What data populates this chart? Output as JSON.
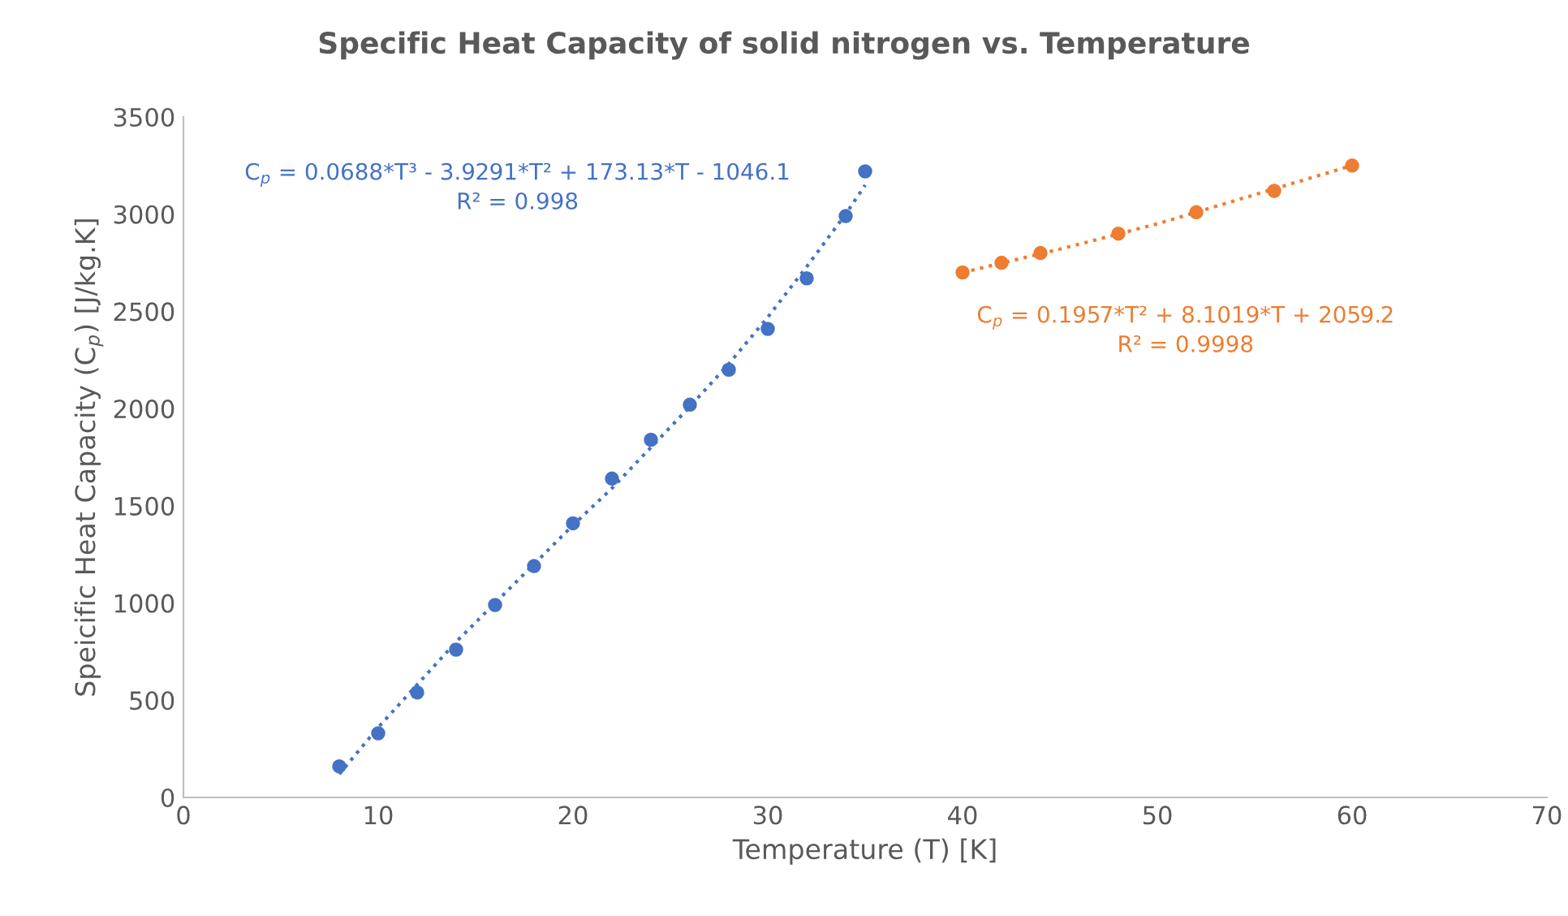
{
  "chart_data": {
    "type": "scatter",
    "title": "Specific Heat Capacity of solid nitrogen vs. Temperature",
    "xlabel": "Temperature (T) [K]",
    "ylabel": "Speicific Heat Capacity (C$_{p}$) [J/kg.K]",
    "xlim": [
      0,
      70
    ],
    "xticks": [
      0,
      10,
      20,
      30,
      40,
      50,
      60,
      70
    ],
    "ylim": [
      0,
      3500
    ],
    "yticks": [
      0,
      500,
      1000,
      1500,
      2000,
      2500,
      3000,
      3500
    ],
    "marker": "circle",
    "series": [
      {
        "color": "#4472c4",
        "x": [
          8,
          10,
          12,
          14,
          16,
          18,
          20,
          22,
          24,
          26,
          28,
          30,
          32,
          34,
          35
        ],
        "values": [
          160,
          330,
          540,
          760,
          990,
          1190,
          1410,
          1640,
          1840,
          2020,
          2200,
          2410,
          2670,
          2990,
          3220
        ]
      },
      {
        "color": "#ed7d31",
        "x": [
          40,
          42,
          44,
          48,
          52,
          56,
          60
        ],
        "values": [
          2700,
          2750,
          2800,
          2900,
          3010,
          3120,
          3250
        ]
      },
      {
        "type": "line",
        "line_style": "dotted",
        "marker": "none",
        "color": "#4472c4",
        "x": [
          8,
          10,
          12,
          14,
          16,
          18,
          20,
          22,
          24,
          26,
          28,
          30,
          32,
          34,
          35
        ],
        "values": [
          120,
          360,
          580,
          800,
          1000,
          1200,
          1400,
          1590,
          1800,
          2010,
          2230,
          2470,
          2730,
          3000,
          3150
        ]
      },
      {
        "type": "line",
        "line_style": "dotted",
        "marker": "none",
        "color": "#ed7d31",
        "x": [
          40,
          45,
          50,
          55,
          60
        ],
        "values": [
          2700,
          2820,
          2950,
          3100,
          3250
        ]
      }
    ],
    "annotations": [
      "C$_{p}$ = 0.0688*T³ - 3.9291*T² + 173.13*T - 1046.1\nR² = 0.998",
      "C$_{p}$ = 0.1957*T² + 8.1019*T + 2059.2\nR² = 0.9998"
    ]
  }
}
